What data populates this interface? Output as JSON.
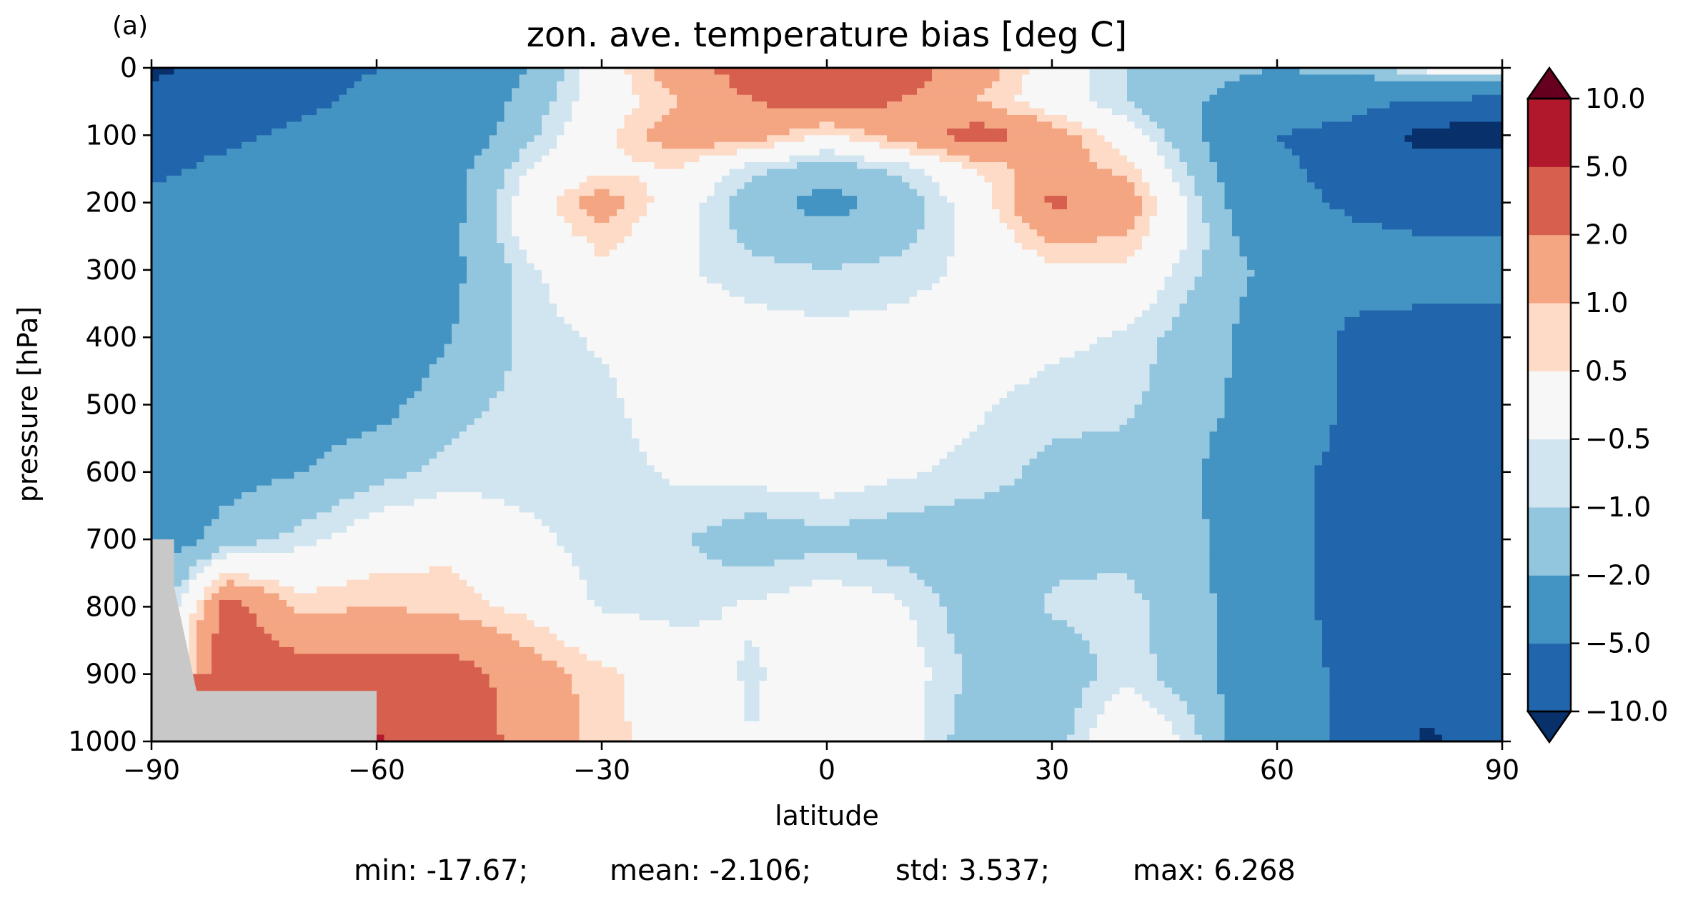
{
  "panel_label": "(a)",
  "stats": {
    "min": "min: -17.67;",
    "mean": "mean: -2.106;",
    "std": "std: 3.537;",
    "max": "max: 6.268"
  },
  "chart_data": {
    "type": "contourf",
    "title": "zon. ave. temperature bias [deg C]",
    "xlabel": "latitude",
    "ylabel": "pressure [hPa]",
    "xlim": [
      -90,
      90
    ],
    "ylim": [
      1000,
      0
    ],
    "x_ticks": [
      -90,
      -60,
      -30,
      0,
      30,
      60,
      90
    ],
    "x_tick_labels": [
      "−90",
      "−60",
      "−30",
      "0",
      "30",
      "60",
      "90"
    ],
    "y_ticks": [
      0,
      100,
      200,
      300,
      400,
      500,
      600,
      700,
      800,
      900,
      1000
    ],
    "y_tick_labels": [
      "0",
      "100",
      "200",
      "300",
      "400",
      "500",
      "600",
      "700",
      "800",
      "900",
      "1000"
    ],
    "colorbar": {
      "extend": "both",
      "levels": [
        -10.0,
        -5.0,
        -2.0,
        -1.0,
        -0.5,
        0.5,
        1.0,
        2.0,
        5.0,
        10.0
      ],
      "level_labels": [
        "−10.0",
        "−5.0",
        "−2.0",
        "−1.0",
        "−0.5",
        "0.5",
        "1.0",
        "2.0",
        "5.0",
        "10.0"
      ],
      "colors": [
        "#08306b",
        "#2166ac",
        "#4393c3",
        "#92c5de",
        "#d1e5f0",
        "#f7f7f7",
        "#fddbc7",
        "#f4a582",
        "#d6604d",
        "#b2182b",
        "#67001f"
      ]
    },
    "missing_color": "#c8c8c8",
    "lat": [
      -90,
      -80,
      -70,
      -60,
      -50,
      -40,
      -30,
      -20,
      -10,
      0,
      10,
      20,
      30,
      40,
      50,
      60,
      70,
      80,
      90
    ],
    "pressure": [
      0,
      50,
      100,
      150,
      200,
      250,
      300,
      400,
      500,
      600,
      700,
      800,
      900,
      1000
    ],
    "values": [
      [
        -12.0,
        -7.0,
        -6.0,
        -5.0,
        -4.0,
        -2.0,
        0.0,
        1.5,
        2.5,
        3.0,
        2.5,
        1.5,
        0.0,
        -1.0,
        -1.5,
        -2.0,
        -1.5,
        0.0,
        0.5
      ],
      [
        -7.0,
        -6.0,
        -5.5,
        -4.5,
        -3.5,
        -1.5,
        0.0,
        1.0,
        2.0,
        2.5,
        2.0,
        1.0,
        0.0,
        -1.0,
        -2.0,
        -3.0,
        -4.0,
        -5.0,
        -6.0
      ],
      [
        -5.5,
        -5.5,
        -4.5,
        -4.0,
        -3.0,
        -1.2,
        0.3,
        1.5,
        1.5,
        0.3,
        1.5,
        2.5,
        1.5,
        0.0,
        -2.0,
        -5.0,
        -6.0,
        -12.0,
        -12.0
      ],
      [
        -5.5,
        -4.5,
        -4.0,
        -3.5,
        -2.5,
        -0.5,
        0.3,
        0.5,
        -0.8,
        -1.5,
        -0.8,
        0.5,
        1.5,
        0.8,
        -1.5,
        -4.5,
        -6.0,
        -8.0,
        -8.0
      ],
      [
        -4.5,
        -4.0,
        -4.0,
        -3.5,
        -2.5,
        0.0,
        1.5,
        0.0,
        -1.5,
        -2.5,
        -1.5,
        0.0,
        2.2,
        1.5,
        -1.0,
        -4.0,
        -5.5,
        -6.0,
        -6.0
      ],
      [
        -4.5,
        -4.0,
        -4.0,
        -3.5,
        -2.2,
        -0.2,
        0.8,
        -0.2,
        -1.2,
        -1.5,
        -1.2,
        -0.2,
        1.2,
        1.0,
        -0.8,
        -3.5,
        -4.5,
        -5.0,
        -5.0
      ],
      [
        -4.0,
        -3.5,
        -3.0,
        -3.5,
        -2.3,
        -0.7,
        0.3,
        -0.4,
        -0.8,
        -1.0,
        -0.8,
        -0.3,
        0.3,
        0.3,
        -1.0,
        -2.5,
        -4.0,
        -4.5,
        -4.5
      ],
      [
        -4.5,
        -4.5,
        -4.0,
        -3.5,
        -2.0,
        -0.8,
        -0.4,
        0.0,
        -0.2,
        -0.3,
        -0.2,
        0.0,
        -0.3,
        -0.6,
        -1.5,
        -2.8,
        -5.5,
        -5.5,
        -5.5
      ],
      [
        -3.5,
        -3.0,
        -2.8,
        -2.5,
        -1.2,
        -0.8,
        -0.7,
        0.0,
        0.0,
        0.0,
        0.0,
        -0.4,
        -0.8,
        -0.9,
        -1.5,
        -3.0,
        -5.5,
        -5.5,
        -5.5
      ],
      [
        -2.8,
        -2.5,
        -2.0,
        -1.2,
        -0.8,
        -0.8,
        -0.8,
        -0.4,
        -0.2,
        -0.1,
        -0.4,
        -0.7,
        -1.2,
        -1.2,
        -2.0,
        -4.5,
        -5.5,
        -5.5,
        -5.5
      ],
      [
        -3.0,
        -1.5,
        -0.7,
        0.0,
        0.3,
        -0.3,
        -0.8,
        -0.9,
        -1.5,
        -1.2,
        -1.4,
        -1.5,
        -1.2,
        -1.2,
        -1.8,
        -4.5,
        -5.5,
        -5.5,
        -5.5
      ],
      [
        -2.0,
        2.5,
        0.8,
        1.0,
        0.8,
        0.3,
        -0.6,
        -0.7,
        -0.4,
        0.0,
        -0.4,
        -1.5,
        -0.9,
        -0.8,
        -1.5,
        -4.5,
        -5.5,
        -6.0,
        -6.0
      ],
      [
        null,
        3.0,
        2.5,
        2.5,
        2.5,
        1.5,
        0.7,
        0.0,
        -0.6,
        0.0,
        -0.1,
        -1.2,
        -1.5,
        -0.7,
        -1.5,
        -4.0,
        -5.5,
        -6.0,
        -6.0
      ],
      [
        null,
        5.5,
        5.5,
        5.5,
        3.0,
        1.5,
        0.8,
        0.0,
        -0.5,
        0.0,
        -0.1,
        -1.5,
        -1.5,
        0.6,
        -1.0,
        -4.0,
        -5.5,
        -11.0,
        -6.0
      ]
    ],
    "missing_region": {
      "description": "below-ground mask",
      "polygon_lat_p": [
        [
          -90,
          700
        ],
        [
          -87,
          700
        ],
        [
          -87,
          770
        ],
        [
          -84,
          925
        ],
        [
          -60,
          925
        ],
        [
          -60,
          1000
        ],
        [
          -90,
          1000
        ]
      ]
    }
  }
}
